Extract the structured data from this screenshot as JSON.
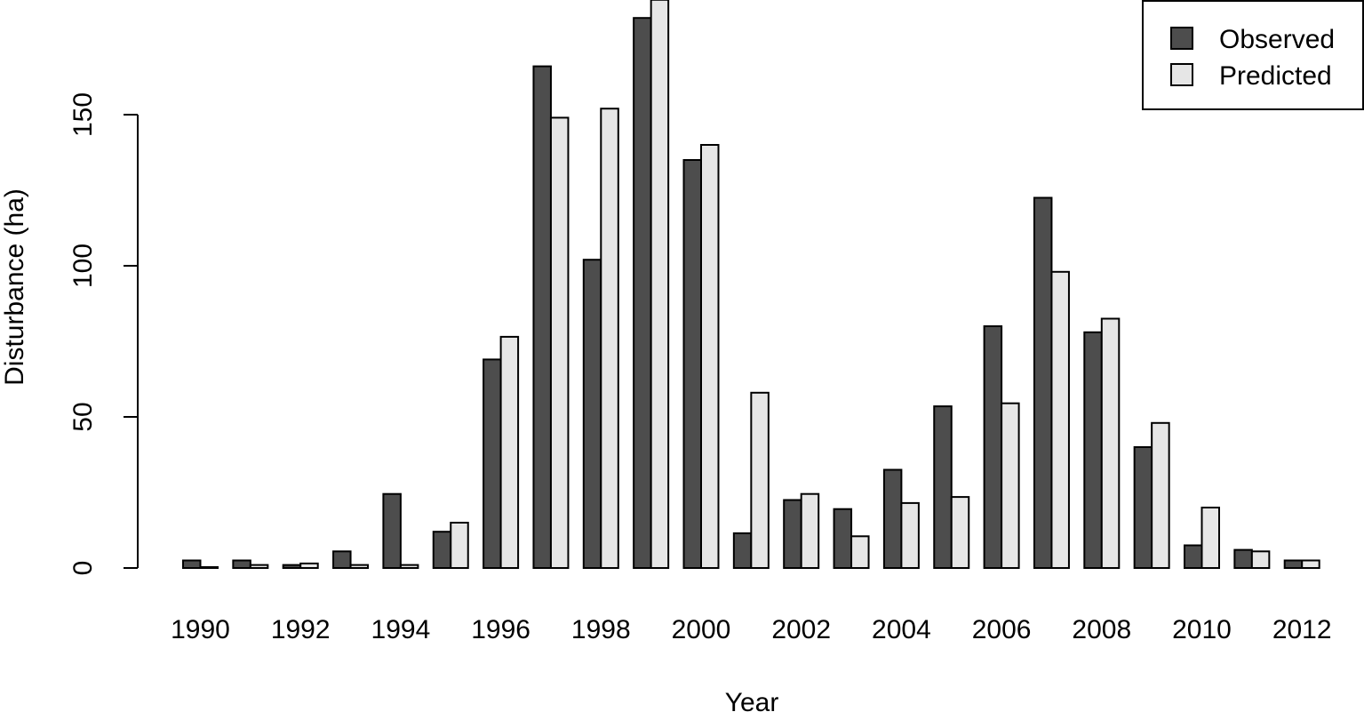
{
  "chart_data": {
    "type": "bar",
    "xlabel": "Year",
    "ylabel": "Disturbance (ha)",
    "ylim": [
      0,
      188
    ],
    "y_ticks": [
      0,
      50,
      100,
      150
    ],
    "categories": [
      "1990",
      "1991",
      "1992",
      "1993",
      "1994",
      "1995",
      "1996",
      "1997",
      "1998",
      "1999",
      "2000",
      "2001",
      "2002",
      "2003",
      "2004",
      "2005",
      "2006",
      "2007",
      "2008",
      "2009",
      "2010",
      "2011",
      "2012"
    ],
    "x_tick_labels": [
      "1990",
      "1992",
      "1994",
      "1996",
      "1998",
      "2000",
      "2002",
      "2004",
      "2006",
      "2008",
      "2010",
      "2012"
    ],
    "series": [
      {
        "name": "Observed",
        "color": "#4d4d4d",
        "values": [
          2.5,
          2.5,
          1,
          5.5,
          24.5,
          12,
          69,
          166,
          102,
          182,
          135,
          11.5,
          22.5,
          19.5,
          32.5,
          53.5,
          80,
          122.5,
          78,
          40,
          7.5,
          6,
          2.5
        ]
      },
      {
        "name": "Predicted",
        "color": "#e6e6e6",
        "values": [
          0.3,
          1,
          1.5,
          1,
          1,
          15,
          76.5,
          149,
          152,
          188,
          140,
          58,
          24.5,
          10.5,
          21.5,
          23.5,
          54.5,
          98,
          82.5,
          48,
          20,
          5.5,
          2.5
        ]
      }
    ],
    "legend": {
      "position": "top-right",
      "entries": [
        "Observed",
        "Predicted"
      ]
    },
    "grid": false
  }
}
